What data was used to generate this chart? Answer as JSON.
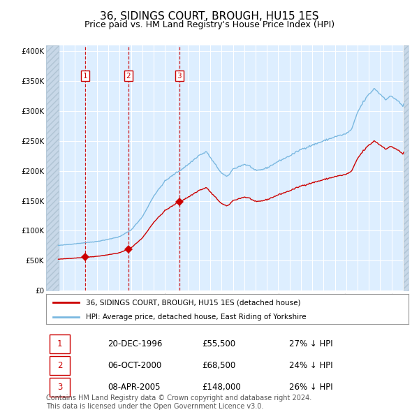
{
  "title": "36, SIDINGS COURT, BROUGH, HU15 1ES",
  "subtitle": "Price paid vs. HM Land Registry's House Price Index (HPI)",
  "title_fontsize": 11,
  "subtitle_fontsize": 9,
  "background_color": "#ffffff",
  "plot_bg_color": "#ddeeff",
  "hatch_bg_color": "#c8d8e8",
  "grid_color": "#ffffff",
  "xmin": 1993.5,
  "xmax": 2025.5,
  "ymin": 0,
  "ymax": 410000,
  "yticks": [
    0,
    50000,
    100000,
    150000,
    200000,
    250000,
    300000,
    350000,
    400000
  ],
  "ytick_labels": [
    "£0",
    "£50K",
    "£100K",
    "£150K",
    "£200K",
    "£250K",
    "£300K",
    "£350K",
    "£400K"
  ],
  "xticks": [
    1994,
    1995,
    1996,
    1997,
    1998,
    1999,
    2000,
    2001,
    2002,
    2003,
    2004,
    2005,
    2006,
    2007,
    2008,
    2009,
    2010,
    2011,
    2012,
    2013,
    2014,
    2015,
    2016,
    2017,
    2018,
    2019,
    2020,
    2021,
    2022,
    2023,
    2024,
    2025
  ],
  "hpi_color": "#7ab8e0",
  "price_color": "#cc0000",
  "sale_marker_color": "#cc0000",
  "sale_dates": [
    1996.97,
    2000.77,
    2005.27
  ],
  "sale_prices": [
    55500,
    68500,
    148000
  ],
  "sale_labels": [
    "1",
    "2",
    "3"
  ],
  "legend_label_price": "36, SIDINGS COURT, BROUGH, HU15 1ES (detached house)",
  "legend_label_hpi": "HPI: Average price, detached house, East Riding of Yorkshire",
  "table_data": [
    [
      "1",
      "20-DEC-1996",
      "£55,500",
      "27% ↓ HPI"
    ],
    [
      "2",
      "06-OCT-2000",
      "£68,500",
      "24% ↓ HPI"
    ],
    [
      "3",
      "08-APR-2005",
      "£148,000",
      "26% ↓ HPI"
    ]
  ],
  "footer": "Contains HM Land Registry data © Crown copyright and database right 2024.\nThis data is licensed under the Open Government Licence v3.0.",
  "footer_fontsize": 7,
  "hatch_left_end": 1994.58,
  "hatch_right_start": 2025.08,
  "data_start": 1994.58
}
